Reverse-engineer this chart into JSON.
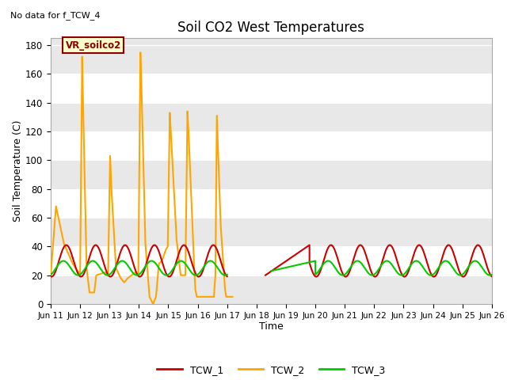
{
  "title": "Soil CO2 West Temperatures",
  "subtitle": "No data for f_TCW_4",
  "xlabel": "Time",
  "ylabel": "Soil Temperature (C)",
  "ylim": [
    0,
    185
  ],
  "yticks": [
    0,
    20,
    40,
    60,
    80,
    100,
    120,
    140,
    160,
    180
  ],
  "annotation_label": "VR_soilco2",
  "line_colors": {
    "TCW_1": "#cc0000",
    "TCW_2": "#ffa500",
    "TCW_3": "#00cc00"
  },
  "xtick_labels": [
    "Jun 11",
    "Jun 12",
    "Jun 13",
    "Jun 14",
    "Jun 15",
    "Jun 16",
    "Jun 17",
    "Jun 18",
    "Jun 19",
    "Jun 20",
    "Jun 21",
    "Jun 22",
    "Jun 23",
    "Jun 24",
    "Jun 25",
    "Jun 26"
  ],
  "band_light": "#ffffff",
  "band_dark": "#e8e8e8",
  "fig_bg": "#ffffff",
  "tcw2_x": [
    0.0,
    0.18,
    0.45,
    0.75,
    0.95,
    1.0,
    1.07,
    1.1,
    1.22,
    1.32,
    1.48,
    1.55,
    1.85,
    1.95,
    2.02,
    2.07,
    2.22,
    2.38,
    2.5,
    2.62,
    2.88,
    2.98,
    3.05,
    3.09,
    3.22,
    3.36,
    3.48,
    3.58,
    3.68,
    3.78,
    3.92,
    3.98,
    4.05,
    4.09,
    4.28,
    4.42,
    4.55,
    4.58,
    4.65,
    4.69,
    4.82,
    4.88,
    4.92,
    4.97,
    5.55,
    5.6,
    5.65,
    5.78,
    5.88,
    5.93,
    5.97,
    6.08,
    6.12,
    6.18
  ],
  "tcw2_y": [
    20,
    68,
    42,
    28,
    22,
    20,
    172,
    140,
    25,
    8,
    8,
    20,
    22,
    20,
    103,
    78,
    25,
    18,
    15,
    18,
    22,
    20,
    175,
    148,
    42,
    5,
    0,
    5,
    28,
    30,
    38,
    40,
    133,
    118,
    45,
    20,
    20,
    20,
    134,
    118,
    55,
    25,
    10,
    5,
    5,
    20,
    131,
    55,
    25,
    10,
    5,
    5,
    5,
    5
  ]
}
